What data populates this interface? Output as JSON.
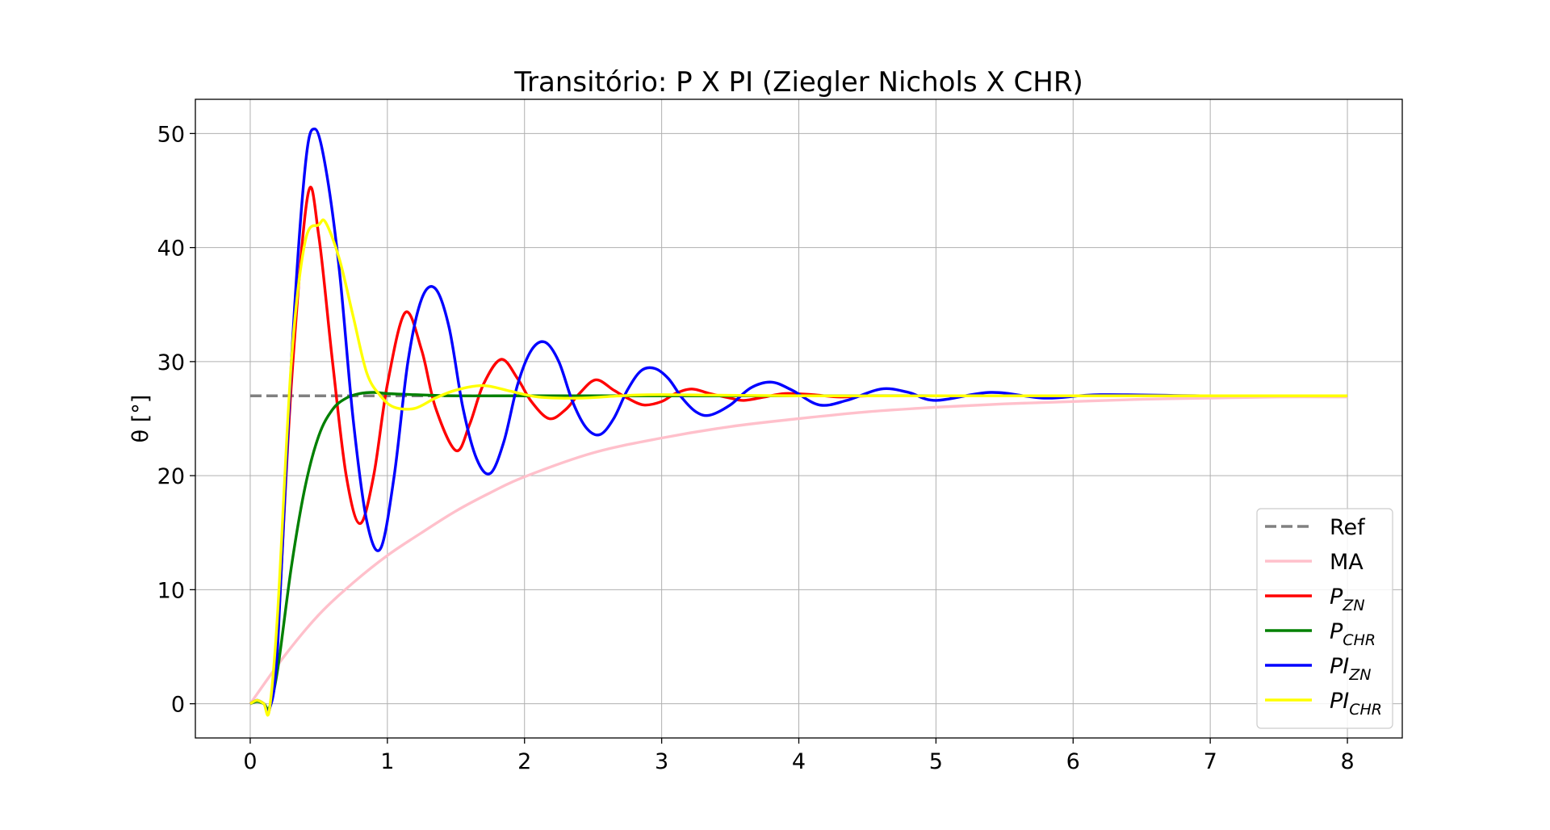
{
  "chart_data": {
    "type": "line",
    "title": "Transitório: P X PI (Ziegler Nichols X CHR)",
    "xlabel": "",
    "ylabel": "θ [°]",
    "xlim": [
      -0.4,
      8.4
    ],
    "ylim": [
      -3,
      53
    ],
    "xticks": [
      0,
      1,
      2,
      3,
      4,
      5,
      6,
      7,
      8
    ],
    "yticks": [
      0,
      10,
      20,
      30,
      40,
      50
    ],
    "grid": true,
    "legend_position": "lower-right",
    "series": [
      {
        "key": "ref",
        "name": "Ref",
        "color": "#808080",
        "dash": true,
        "x": [
          0,
          8
        ],
        "y": [
          27,
          27
        ]
      },
      {
        "key": "ma",
        "name": "MA",
        "color": "#ffc0cb",
        "x": [
          0,
          0.25,
          0.5,
          0.75,
          1.0,
          1.25,
          1.5,
          1.75,
          2.0,
          2.5,
          3.0,
          3.5,
          4.0,
          4.5,
          5.0,
          5.5,
          6.0,
          6.5,
          7.0,
          7.5,
          8.0
        ],
        "y": [
          0,
          4.2,
          7.8,
          10.6,
          13.0,
          15.0,
          16.9,
          18.5,
          19.9,
          22.0,
          23.3,
          24.3,
          25.0,
          25.6,
          26.0,
          26.3,
          26.5,
          26.7,
          26.8,
          26.9,
          26.9
        ]
      },
      {
        "key": "pzn",
        "name": "P",
        "sub": "ZN",
        "color": "#ff0000",
        "x": [
          0,
          0.05,
          0.1,
          0.14,
          0.2,
          0.3,
          0.42,
          0.5,
          0.6,
          0.7,
          0.8,
          0.9,
          1.0,
          1.13,
          1.25,
          1.35,
          1.5,
          1.6,
          1.7,
          1.83,
          1.95,
          2.05,
          2.18,
          2.3,
          2.4,
          2.52,
          2.65,
          2.75,
          2.87,
          3.0,
          3.1,
          3.22,
          3.35,
          3.5,
          3.6,
          3.75,
          3.9,
          4.1,
          4.3,
          4.5,
          5.0,
          5.5,
          6.0,
          7.0,
          8.0
        ],
        "y": [
          0,
          0.3,
          0,
          -0.5,
          6,
          28,
          44.6,
          41,
          30,
          20,
          15.8,
          20,
          28,
          34.3,
          31,
          26,
          22.2,
          24.5,
          28,
          30.2,
          28.5,
          26.5,
          25,
          25.8,
          27.2,
          28.4,
          27.5,
          26.8,
          26.2,
          26.5,
          27.2,
          27.6,
          27.2,
          26.8,
          26.6,
          26.9,
          27.2,
          27.1,
          26.9,
          27,
          27,
          27,
          27,
          27,
          27
        ]
      },
      {
        "key": "pchr",
        "name": "P",
        "sub": "CHR",
        "color": "#008000",
        "x": [
          0,
          0.05,
          0.1,
          0.14,
          0.2,
          0.3,
          0.4,
          0.5,
          0.6,
          0.7,
          0.8,
          0.9,
          1.0,
          1.2,
          1.5,
          2.0,
          3.0,
          4.0,
          5.0,
          6.0,
          7.0,
          8.0
        ],
        "y": [
          0,
          0.2,
          0,
          -0.3,
          3,
          12,
          19,
          23.5,
          25.8,
          26.8,
          27.2,
          27.3,
          27.2,
          27.1,
          27,
          27,
          27,
          27,
          27,
          27,
          27,
          27
        ]
      },
      {
        "key": "pizn",
        "name": "PI",
        "sub": "ZN",
        "color": "#0000ff",
        "x": [
          0,
          0.05,
          0.1,
          0.14,
          0.2,
          0.3,
          0.4,
          0.47,
          0.55,
          0.65,
          0.75,
          0.85,
          0.95,
          1.05,
          1.15,
          1.25,
          1.35,
          1.45,
          1.55,
          1.65,
          1.75,
          1.85,
          1.95,
          2.05,
          2.15,
          2.25,
          2.35,
          2.45,
          2.55,
          2.65,
          2.75,
          2.85,
          2.95,
          3.05,
          3.15,
          3.25,
          3.35,
          3.5,
          3.65,
          3.8,
          3.95,
          4.15,
          4.35,
          4.6,
          4.8,
          5.0,
          5.4,
          5.8,
          6.2,
          7.0,
          8.0
        ],
        "y": [
          0,
          0.3,
          0,
          -0.5,
          5,
          30,
          47,
          50.4,
          47,
          38,
          25,
          16,
          13.6,
          20,
          30,
          35.5,
          36.4,
          33,
          26,
          21.5,
          20.2,
          23,
          28,
          31,
          31.7,
          30,
          26.5,
          24.2,
          23.6,
          25,
          27.5,
          29.2,
          29.4,
          28.5,
          26.8,
          25.6,
          25.3,
          26.2,
          27.7,
          28.2,
          27.5,
          26.2,
          26.6,
          27.6,
          27.3,
          26.6,
          27.3,
          26.8,
          27.1,
          27,
          27
        ]
      },
      {
        "key": "pichr",
        "name": "PI",
        "sub": "CHR",
        "color": "#ffff00",
        "x": [
          0,
          0.05,
          0.1,
          0.14,
          0.2,
          0.3,
          0.4,
          0.5,
          0.55,
          0.65,
          0.75,
          0.85,
          0.95,
          1.05,
          1.2,
          1.35,
          1.5,
          1.7,
          1.9,
          2.1,
          2.4,
          2.7,
          3.0,
          4.0,
          5.0,
          6.0,
          7.0,
          8.0
        ],
        "y": [
          0,
          0.3,
          0,
          -0.5,
          8,
          30,
          40.5,
          42,
          42.2,
          39,
          34,
          29,
          27,
          26,
          25.9,
          26.8,
          27.5,
          27.9,
          27.4,
          26.9,
          26.8,
          27,
          27.1,
          27,
          27,
          27,
          27,
          27
        ]
      }
    ]
  }
}
